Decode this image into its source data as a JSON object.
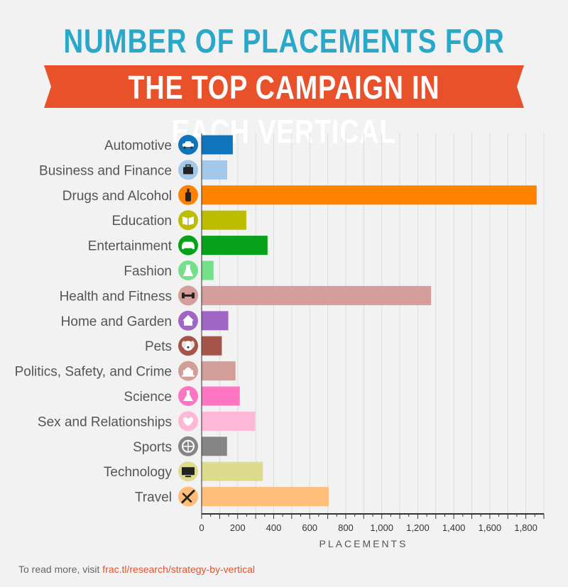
{
  "title": {
    "line1": "NUMBER OF PLACEMENTS FOR",
    "line2": "THE TOP CAMPAIGN IN EACH VERTICAL"
  },
  "colors": {
    "title_blue": "#29a8c9",
    "banner_red": "#e8512a"
  },
  "chart_data": {
    "type": "bar",
    "orientation": "horizontal",
    "categories": [
      "Automotive",
      "Business and Finance",
      "Drugs and Alcohol",
      "Education",
      "Entertainment",
      "Fashion",
      "Health and Fitness",
      "Home and Garden",
      "Pets",
      "Politics, Safety, and Crime",
      "Science",
      "Sex and Relationships",
      "Sports",
      "Technology",
      "Travel"
    ],
    "values": [
      173,
      142,
      1860,
      248,
      366,
      66,
      1274,
      148,
      112,
      188,
      212,
      297,
      141,
      340,
      705
    ],
    "colors": [
      "#0e74bb",
      "#a4c8ea",
      "#ff8100",
      "#bdbd00",
      "#07a21a",
      "#75e08a",
      "#d49e9b",
      "#a066c6",
      "#a5544a",
      "#d39e98",
      "#fe76c2",
      "#fdb8d8",
      "#858585",
      "#dcdc8c",
      "#ffbd7a"
    ],
    "icons": [
      "car-icon",
      "briefcase-icon",
      "bottle-icon",
      "book-icon",
      "gamepad-icon",
      "dress-icon",
      "dumbbell-icon",
      "house-icon",
      "dog-icon",
      "capitol-icon",
      "flask-icon",
      "heart-icon",
      "ball-icon",
      "monitor-icon",
      "airplane-icon"
    ],
    "xlabel": "PLACEMENTS",
    "xlim": [
      0,
      1900
    ],
    "xticks": [
      0,
      200,
      400,
      600,
      800,
      1000,
      1200,
      1400,
      1600,
      1800
    ],
    "xtick_labels": [
      "0",
      "200",
      "400",
      "600",
      "800",
      "1,000",
      "1,200",
      "1,400",
      "1,600",
      "1,800"
    ],
    "grid": true
  },
  "footer": {
    "prefix": "To read more, visit",
    "link": "frac.tl/research/strategy-by-vertical"
  }
}
